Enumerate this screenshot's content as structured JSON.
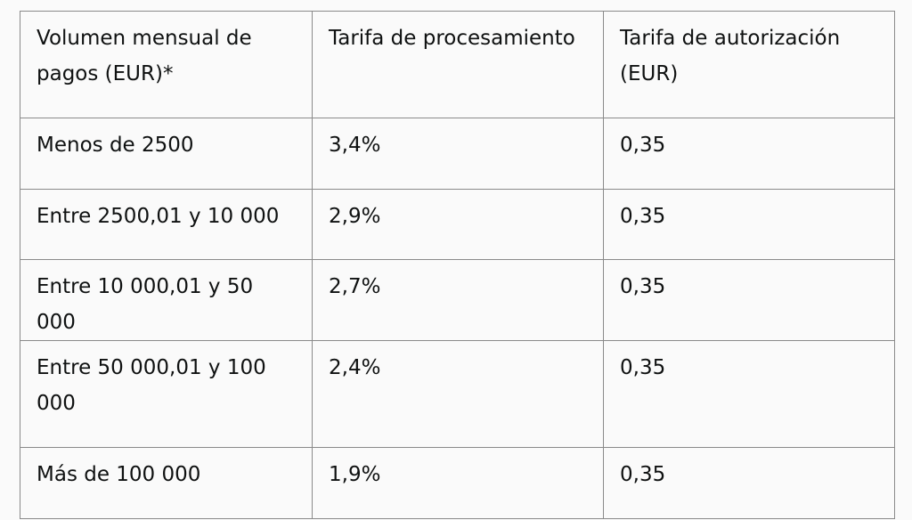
{
  "table": {
    "headers": [
      "Volumen mensual de pagos (EUR)*",
      "Tarifa de procesamiento",
      "Tarifa de autorización (EUR)"
    ],
    "rows": [
      [
        "Menos de 2500",
        "3,4%",
        "0,35"
      ],
      [
        "Entre 2500,01 y 10 000",
        "2,9%",
        "0,35"
      ],
      [
        "Entre 10 000,01 y 50 000",
        "2,7%",
        "0,35"
      ],
      [
        "Entre 50 000,01 y 100 000",
        "2,4%",
        "0,35"
      ],
      [
        "Más de 100 000",
        "1,9%",
        "0,35"
      ]
    ]
  }
}
